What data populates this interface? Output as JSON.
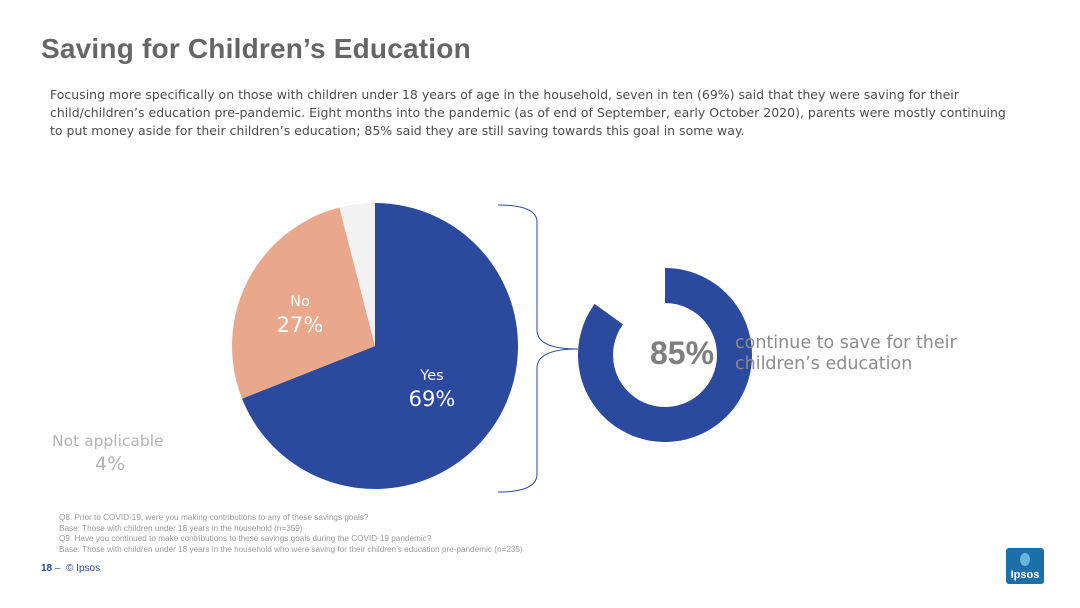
{
  "title": "Saving for Children’s Education",
  "intro": "Focusing more specifically on those with children under 18 years of age in the household, seven in ten (69%) said that they were saving for their child/children’s education pre-pandemic. Eight months into the pandemic (as of end of September, early October 2020), parents were mostly continuing to put money aside for their children’s education; 85% said they are still saving towards this goal in some way.",
  "chart_data": [
    {
      "type": "pie",
      "categories": [
        "Yes",
        "No",
        "Not applicable"
      ],
      "values": [
        69,
        27,
        4
      ],
      "value_labels": [
        "69%",
        "27%",
        "4%"
      ],
      "colors": [
        "#2b4a9d",
        "#e9a88b",
        "#f2f2f2"
      ]
    },
    {
      "type": "pie",
      "categories": [
        "continue to save"
      ],
      "values": [
        85
      ],
      "value_labels": [
        "85%"
      ],
      "colors": [
        "#2b4a9d"
      ]
    }
  ],
  "callout": {
    "percent": "85%",
    "text": "continue to save for their children’s education"
  },
  "footnotes": [
    "Q8. Prior to COVID-19, were you making contributions to any of these savings goals?",
    "Base: Those with children under 18 years in the household (n=359)",
    "Q9. Have you continued to make contributions to these savings goals during the COVID-19 pandemic?",
    "Base: Those with children under 18 years in the household who were saving for their children’s education pre-pandemic (n=235)"
  ],
  "footer": {
    "page": "18",
    "separator": "–",
    "copyright": "© Ipsos"
  },
  "logo_text": "Ipsos"
}
